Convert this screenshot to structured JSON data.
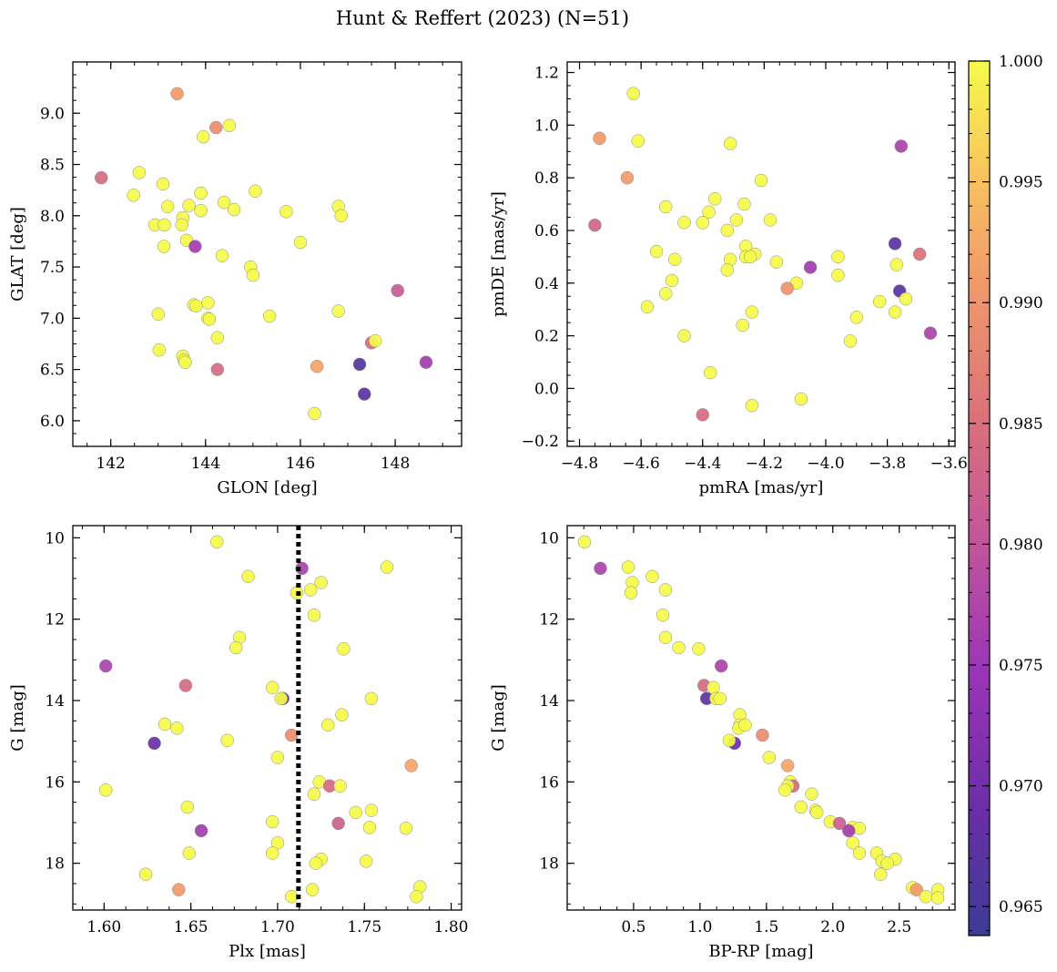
{
  "chart_data": {
    "type": "scatter",
    "title": "Hunt & Reffert (2023) (N=51)",
    "colorbar": {
      "colormap": "plasma",
      "vmin": 0.9638,
      "vmax": 1.0,
      "ticks": [
        0.965,
        0.97,
        0.975,
        0.98,
        0.985,
        0.99,
        0.995,
        1.0
      ],
      "tick_labels": [
        "0.965",
        "0.970",
        "0.975",
        "0.980",
        "0.985",
        "0.990",
        "0.995",
        "1.000"
      ]
    },
    "panels": [
      {
        "xlabel": "GLON [deg]",
        "ylabel": "GLAT [deg]",
        "xlim": [
          141.2,
          149.4
        ],
        "ylim": [
          5.75,
          9.5
        ],
        "xticks": [
          142,
          144,
          146,
          148
        ],
        "xtick_labels": [
          "142",
          "144",
          "146",
          "148"
        ],
        "yticks": [
          6.0,
          6.5,
          7.0,
          7.5,
          8.0,
          8.5,
          9.0
        ],
        "ytick_labels": [
          "6.0",
          "6.5",
          "7.0",
          "7.5",
          "8.0",
          "8.5",
          "9.0"
        ],
        "points": [
          [
            143.4,
            9.19,
            0.991
          ],
          [
            144.22,
            8.86,
            0.989
          ],
          [
            144.5,
            8.88,
            1.0
          ],
          [
            143.95,
            8.77,
            1.0
          ],
          [
            141.8,
            8.37,
            0.984
          ],
          [
            142.6,
            8.42,
            1.0
          ],
          [
            142.48,
            8.2,
            1.0
          ],
          [
            143.1,
            8.31,
            1.0
          ],
          [
            143.2,
            8.09,
            1.0
          ],
          [
            143.9,
            8.22,
            1.0
          ],
          [
            144.39,
            8.13,
            1.0
          ],
          [
            143.65,
            8.1,
            1.0
          ],
          [
            144.6,
            8.06,
            1.0
          ],
          [
            145.05,
            8.24,
            1.0
          ],
          [
            145.7,
            8.04,
            1.0
          ],
          [
            146.8,
            8.09,
            1.0
          ],
          [
            146.86,
            8.0,
            1.0
          ],
          [
            142.93,
            7.91,
            1.0
          ],
          [
            143.13,
            7.91,
            1.0
          ],
          [
            143.52,
            7.98,
            1.0
          ],
          [
            143.5,
            7.91,
            1.0
          ],
          [
            143.9,
            8.05,
            1.0
          ],
          [
            143.6,
            7.76,
            1.0
          ],
          [
            143.12,
            7.7,
            1.0
          ],
          [
            143.78,
            7.7,
            0.976
          ],
          [
            146.0,
            7.74,
            1.0
          ],
          [
            144.35,
            7.61,
            1.0
          ],
          [
            144.95,
            7.5,
            1.0
          ],
          [
            145.0,
            7.42,
            1.0
          ],
          [
            148.05,
            7.27,
            0.981
          ],
          [
            143.75,
            7.13,
            1.0
          ],
          [
            143.8,
            7.12,
            1.0
          ],
          [
            144.05,
            7.15,
            1.0
          ],
          [
            143.0,
            7.04,
            1.0
          ],
          [
            144.05,
            7.0,
            1.0
          ],
          [
            144.08,
            6.99,
            1.0
          ],
          [
            145.35,
            7.02,
            1.0
          ],
          [
            146.8,
            7.07,
            1.0
          ],
          [
            144.25,
            6.81,
            1.0
          ],
          [
            147.5,
            6.76,
            0.984
          ],
          [
            147.58,
            6.78,
            1.0
          ],
          [
            143.02,
            6.69,
            1.0
          ],
          [
            143.52,
            6.63,
            1.0
          ],
          [
            143.55,
            6.59,
            1.0
          ],
          [
            143.57,
            6.57,
            1.0
          ],
          [
            144.25,
            6.5,
            0.984
          ],
          [
            146.35,
            6.53,
            0.992
          ],
          [
            147.25,
            6.55,
            0.966
          ],
          [
            148.65,
            6.57,
            0.976
          ],
          [
            147.35,
            6.26,
            0.967
          ],
          [
            146.3,
            6.07,
            1.0
          ]
        ]
      },
      {
        "xlabel": "pmRA [mas/yr]",
        "ylabel": "pmDE [mas/yr]",
        "xlim": [
          -4.84,
          -3.58
        ],
        "ylim": [
          -0.22,
          1.24
        ],
        "xticks": [
          -4.8,
          -4.6,
          -4.4,
          -4.2,
          -4.0,
          -3.8,
          -3.6
        ],
        "xtick_labels": [
          "−4.8",
          "−4.6",
          "−4.4",
          "−4.2",
          "−4.0",
          "−3.8",
          "−3.6"
        ],
        "yticks": [
          -0.2,
          0.0,
          0.2,
          0.4,
          0.6,
          0.8,
          1.0,
          1.2
        ],
        "ytick_labels": [
          "−0.2",
          "0.0",
          "0.2",
          "0.4",
          "0.6",
          "0.8",
          "1.0",
          "1.2"
        ],
        "points": [
          [
            -4.625,
            1.12,
            1.0
          ],
          [
            -4.735,
            0.95,
            0.991
          ],
          [
            -4.61,
            0.94,
            1.0
          ],
          [
            -4.31,
            0.93,
            1.0
          ],
          [
            -3.755,
            0.92,
            0.977
          ],
          [
            -4.645,
            0.8,
            0.991
          ],
          [
            -4.21,
            0.79,
            1.0
          ],
          [
            -4.52,
            0.69,
            1.0
          ],
          [
            -4.36,
            0.72,
            1.0
          ],
          [
            -4.38,
            0.67,
            1.0
          ],
          [
            -4.265,
            0.7,
            1.0
          ],
          [
            -4.46,
            0.63,
            1.0
          ],
          [
            -4.4,
            0.63,
            1.0
          ],
          [
            -4.29,
            0.64,
            1.0
          ],
          [
            -4.18,
            0.64,
            1.0
          ],
          [
            -4.75,
            0.62,
            0.983
          ],
          [
            -4.32,
            0.6,
            1.0
          ],
          [
            -3.775,
            0.55,
            0.967
          ],
          [
            -4.26,
            0.54,
            1.0
          ],
          [
            -4.55,
            0.52,
            1.0
          ],
          [
            -4.23,
            0.51,
            1.0
          ],
          [
            -3.96,
            0.5,
            1.0
          ],
          [
            -3.695,
            0.51,
            0.985
          ],
          [
            -4.49,
            0.49,
            1.0
          ],
          [
            -4.31,
            0.49,
            1.0
          ],
          [
            -4.26,
            0.5,
            1.0
          ],
          [
            -4.245,
            0.5,
            1.0
          ],
          [
            -4.16,
            0.48,
            1.0
          ],
          [
            -4.05,
            0.46,
            0.976
          ],
          [
            -3.77,
            0.47,
            1.0
          ],
          [
            -4.32,
            0.45,
            1.0
          ],
          [
            -3.96,
            0.43,
            1.0
          ],
          [
            -4.5,
            0.41,
            1.0
          ],
          [
            -4.095,
            0.4,
            1.0
          ],
          [
            -4.125,
            0.38,
            0.99
          ],
          [
            -3.76,
            0.37,
            0.967
          ],
          [
            -4.52,
            0.36,
            1.0
          ],
          [
            -3.74,
            0.34,
            1.0
          ],
          [
            -3.825,
            0.33,
            1.0
          ],
          [
            -4.58,
            0.31,
            1.0
          ],
          [
            -4.24,
            0.29,
            1.0
          ],
          [
            -3.775,
            0.29,
            1.0
          ],
          [
            -3.9,
            0.27,
            1.0
          ],
          [
            -4.27,
            0.24,
            1.0
          ],
          [
            -3.66,
            0.21,
            0.977
          ],
          [
            -4.46,
            0.2,
            1.0
          ],
          [
            -3.92,
            0.18,
            1.0
          ],
          [
            -4.375,
            0.06,
            1.0
          ],
          [
            -4.08,
            -0.04,
            1.0
          ],
          [
            -4.24,
            -0.065,
            1.0
          ],
          [
            -4.4,
            -0.1,
            0.984
          ]
        ]
      },
      {
        "xlabel": "Plx [mas]",
        "ylabel": "G [mag]",
        "xlim": [
          1.582,
          1.806
        ],
        "ylim": [
          19.15,
          9.7
        ],
        "xticks": [
          1.6,
          1.65,
          1.7,
          1.75,
          1.8
        ],
        "xtick_labels": [
          "1.60",
          "1.65",
          "1.70",
          "1.75",
          "1.80"
        ],
        "yticks": [
          10,
          12,
          14,
          16,
          18
        ],
        "ytick_labels": [
          "10",
          "12",
          "14",
          "16",
          "18"
        ],
        "vline": 1.712,
        "points": [
          [
            1.665,
            10.1,
            1.0
          ],
          [
            1.763,
            10.72,
            1.0
          ],
          [
            1.714,
            10.75,
            0.977
          ],
          [
            1.683,
            10.95,
            1.0
          ],
          [
            1.725,
            11.1,
            1.0
          ],
          [
            1.719,
            11.28,
            1.0
          ],
          [
            1.711,
            11.35,
            1.0
          ],
          [
            1.721,
            11.9,
            1.0
          ],
          [
            1.678,
            12.45,
            1.0
          ],
          [
            1.676,
            12.7,
            1.0
          ],
          [
            1.738,
            12.73,
            1.0
          ],
          [
            1.601,
            13.15,
            0.977
          ],
          [
            1.647,
            13.63,
            0.984
          ],
          [
            1.697,
            13.68,
            1.0
          ],
          [
            1.703,
            13.95,
            0.967
          ],
          [
            1.702,
            13.95,
            1.0
          ],
          [
            1.754,
            13.95,
            1.0
          ],
          [
            1.737,
            14.35,
            1.0
          ],
          [
            1.635,
            14.58,
            1.0
          ],
          [
            1.642,
            14.68,
            1.0
          ],
          [
            1.729,
            14.6,
            1.0
          ],
          [
            1.708,
            14.85,
            0.989
          ],
          [
            1.629,
            15.05,
            0.969
          ],
          [
            1.671,
            14.98,
            1.0
          ],
          [
            1.7,
            15.4,
            1.0
          ],
          [
            1.777,
            15.6,
            0.992
          ],
          [
            1.724,
            16.0,
            1.0
          ],
          [
            1.73,
            16.1,
            0.984
          ],
          [
            1.736,
            16.1,
            1.0
          ],
          [
            1.601,
            16.2,
            1.0
          ],
          [
            1.721,
            16.3,
            1.0
          ],
          [
            1.648,
            16.62,
            1.0
          ],
          [
            1.754,
            16.7,
            1.0
          ],
          [
            1.745,
            16.75,
            1.0
          ],
          [
            1.697,
            16.98,
            1.0
          ],
          [
            1.735,
            17.02,
            0.982
          ],
          [
            1.753,
            17.12,
            1.0
          ],
          [
            1.774,
            17.14,
            1.0
          ],
          [
            1.656,
            17.2,
            0.976
          ],
          [
            1.7,
            17.5,
            1.0
          ],
          [
            1.649,
            17.75,
            1.0
          ],
          [
            1.697,
            17.75,
            1.0
          ],
          [
            1.751,
            17.95,
            1.0
          ],
          [
            1.725,
            17.9,
            1.0
          ],
          [
            1.722,
            18.0,
            1.0
          ],
          [
            1.624,
            18.27,
            1.0
          ],
          [
            1.782,
            18.58,
            1.0
          ],
          [
            1.643,
            18.65,
            0.991
          ],
          [
            1.72,
            18.65,
            1.0
          ],
          [
            1.708,
            18.82,
            1.0
          ],
          [
            1.78,
            18.82,
            1.0
          ]
        ]
      },
      {
        "xlabel": "BP-RP [mag]",
        "ylabel": "G [mag]",
        "xlim": [
          0.0,
          2.92
        ],
        "ylim": [
          19.15,
          9.7
        ],
        "xticks": [
          0.5,
          1.0,
          1.5,
          2.0,
          2.5
        ],
        "xtick_labels": [
          "0.5",
          "1.0",
          "1.5",
          "2.0",
          "2.5"
        ],
        "yticks": [
          10,
          12,
          14,
          16,
          18
        ],
        "ytick_labels": [
          "10",
          "12",
          "14",
          "16",
          "18"
        ],
        "points": [
          [
            0.13,
            10.1,
            1.0
          ],
          [
            0.25,
            10.75,
            0.977
          ],
          [
            0.46,
            10.72,
            1.0
          ],
          [
            0.49,
            11.1,
            1.0
          ],
          [
            0.48,
            11.35,
            1.0
          ],
          [
            0.64,
            10.95,
            1.0
          ],
          [
            0.74,
            11.28,
            1.0
          ],
          [
            0.72,
            11.9,
            1.0
          ],
          [
            0.74,
            12.45,
            1.0
          ],
          [
            0.84,
            12.7,
            1.0
          ],
          [
            0.99,
            12.73,
            1.0
          ],
          [
            1.16,
            13.15,
            0.977
          ],
          [
            1.03,
            13.63,
            0.984
          ],
          [
            1.1,
            13.68,
            1.0
          ],
          [
            1.05,
            13.95,
            0.967
          ],
          [
            1.12,
            13.95,
            1.0
          ],
          [
            1.15,
            13.95,
            1.0
          ],
          [
            1.3,
            14.35,
            1.0
          ],
          [
            1.3,
            14.6,
            1.0
          ],
          [
            1.29,
            14.68,
            1.0
          ],
          [
            1.34,
            14.6,
            1.0
          ],
          [
            1.47,
            14.85,
            0.989
          ],
          [
            1.26,
            15.05,
            0.969
          ],
          [
            1.22,
            14.98,
            1.0
          ],
          [
            1.52,
            15.4,
            1.0
          ],
          [
            1.66,
            15.6,
            0.992
          ],
          [
            1.68,
            16.0,
            1.0
          ],
          [
            1.7,
            16.1,
            0.984
          ],
          [
            1.66,
            16.1,
            1.0
          ],
          [
            1.64,
            16.2,
            1.0
          ],
          [
            1.84,
            16.3,
            1.0
          ],
          [
            1.76,
            16.62,
            1.0
          ],
          [
            1.87,
            16.7,
            1.0
          ],
          [
            1.88,
            16.75,
            1.0
          ],
          [
            1.98,
            16.98,
            1.0
          ],
          [
            2.05,
            17.02,
            0.982
          ],
          [
            2.15,
            17.12,
            1.0
          ],
          [
            2.2,
            17.14,
            1.0
          ],
          [
            2.12,
            17.2,
            0.976
          ],
          [
            2.15,
            17.5,
            1.0
          ],
          [
            2.33,
            17.75,
            1.0
          ],
          [
            2.2,
            17.75,
            1.0
          ],
          [
            2.47,
            17.9,
            1.0
          ],
          [
            2.37,
            17.95,
            1.0
          ],
          [
            2.41,
            18.0,
            1.0
          ],
          [
            2.36,
            18.27,
            1.0
          ],
          [
            2.6,
            18.6,
            1.0
          ],
          [
            2.63,
            18.65,
            0.991
          ],
          [
            2.79,
            18.65,
            1.0
          ],
          [
            2.7,
            18.82,
            1.0
          ],
          [
            2.79,
            18.85,
            1.0
          ]
        ]
      }
    ]
  }
}
